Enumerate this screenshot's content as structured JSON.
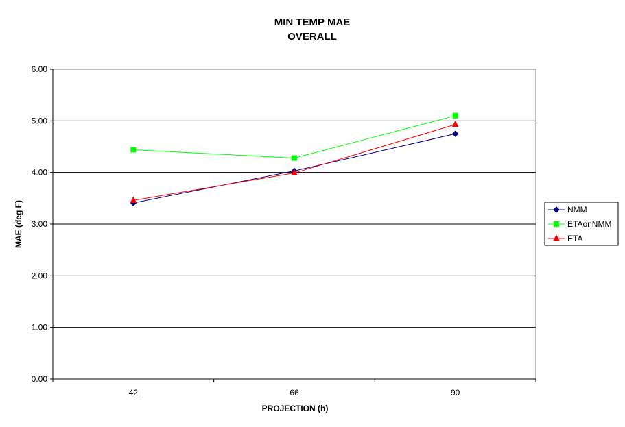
{
  "chart_data": {
    "type": "line",
    "title": "MIN TEMP MAE",
    "subtitle": "OVERALL",
    "xlabel": "PROJECTION (h)",
    "ylabel": "MAE (deg F)",
    "categories": [
      "42",
      "66",
      "90"
    ],
    "ylim": [
      0,
      6
    ],
    "yticks": [
      "0.00",
      "1.00",
      "2.00",
      "3.00",
      "4.00",
      "5.00",
      "6.00"
    ],
    "grid": "horizontal",
    "legend_position": "right",
    "series": [
      {
        "name": "NMM",
        "values": [
          3.41,
          4.03,
          4.75
        ],
        "color": "#000080",
        "marker": "diamond"
      },
      {
        "name": "ETAonNMM",
        "values": [
          4.44,
          4.28,
          5.1
        ],
        "color": "#00ff00",
        "marker": "square"
      },
      {
        "name": "ETA",
        "values": [
          3.46,
          3.99,
          4.93
        ],
        "color": "#ff0000",
        "marker": "triangle"
      }
    ]
  }
}
